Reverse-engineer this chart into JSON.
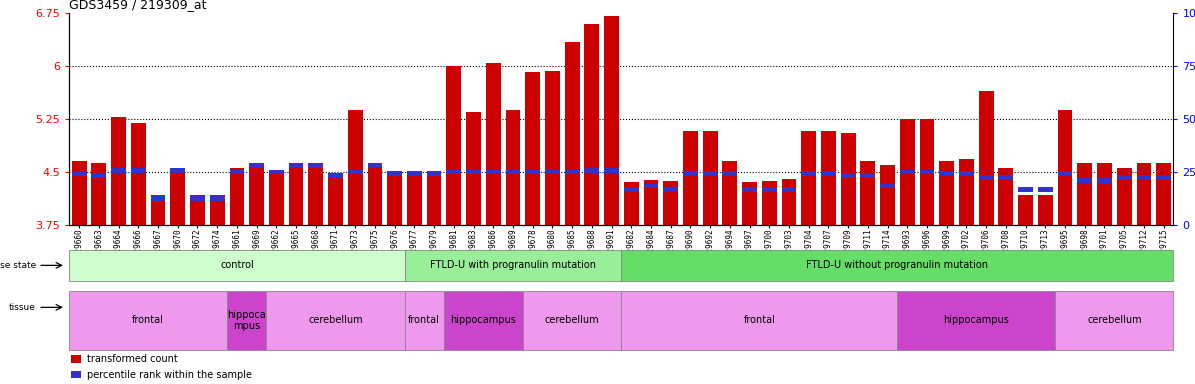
{
  "title": "GDS3459 / 219309_at",
  "ylim_left": [
    3.75,
    6.75
  ],
  "ylim_right": [
    0,
    100
  ],
  "yticks_left": [
    3.75,
    4.5,
    5.25,
    6.0,
    6.75
  ],
  "yticks_right": [
    0,
    25,
    50,
    75,
    100
  ],
  "ytick_labels_left": [
    "3.75",
    "4.5",
    "5.25",
    "6",
    "6.75"
  ],
  "ytick_labels_right": [
    "0",
    "25",
    "50",
    "75",
    "100%"
  ],
  "hlines": [
    4.5,
    5.25,
    6.0
  ],
  "bar_color": "#cc0000",
  "blue_color": "#3333cc",
  "samples": [
    "GSM329660",
    "GSM329663",
    "GSM329664",
    "GSM329666",
    "GSM329667",
    "GSM329670",
    "GSM329672",
    "GSM329674",
    "GSM329661",
    "GSM329669",
    "GSM329662",
    "GSM329665",
    "GSM329668",
    "GSM329671",
    "GSM329673",
    "GSM329675",
    "GSM329676",
    "GSM329677",
    "GSM329679",
    "GSM329681",
    "GSM329683",
    "GSM329686",
    "GSM329689",
    "GSM329678",
    "GSM329680",
    "GSM329685",
    "GSM329688",
    "GSM329691",
    "GSM329682",
    "GSM329684",
    "GSM329687",
    "GSM329690",
    "GSM329692",
    "GSM329694",
    "GSM329697",
    "GSM329700",
    "GSM329703",
    "GSM329704",
    "GSM329707",
    "GSM329709",
    "GSM329711",
    "GSM329714",
    "GSM329693",
    "GSM329696",
    "GSM329699",
    "GSM329702",
    "GSM329706",
    "GSM329708",
    "GSM329710",
    "GSM329713",
    "GSM329695",
    "GSM329698",
    "GSM329701",
    "GSM329705",
    "GSM329712",
    "GSM329715"
  ],
  "bar_heights": [
    4.65,
    4.62,
    5.28,
    5.19,
    4.17,
    4.54,
    4.17,
    4.17,
    4.55,
    4.63,
    4.51,
    4.63,
    4.63,
    4.45,
    5.38,
    4.63,
    4.51,
    4.51,
    4.51,
    6.0,
    5.35,
    6.05,
    5.38,
    5.92,
    5.93,
    6.35,
    6.6,
    6.72,
    4.35,
    4.38,
    4.37,
    5.08,
    5.08,
    4.65,
    4.35,
    4.37,
    4.4,
    5.08,
    5.08,
    5.05,
    4.65,
    4.6,
    5.25,
    5.25,
    4.65,
    4.68,
    5.65,
    4.55,
    4.17,
    4.17,
    5.38,
    4.62,
    4.62,
    4.55,
    4.62,
    4.62
  ],
  "blue_positions": [
    4.47,
    4.45,
    4.52,
    4.52,
    4.12,
    4.52,
    4.12,
    4.12,
    4.5,
    4.6,
    4.5,
    4.58,
    4.58,
    4.45,
    4.5,
    4.6,
    4.48,
    4.48,
    4.48,
    4.5,
    4.5,
    4.5,
    4.5,
    4.5,
    4.5,
    4.5,
    4.52,
    4.52,
    4.25,
    4.3,
    4.25,
    4.48,
    4.48,
    4.48,
    4.25,
    4.25,
    4.25,
    4.48,
    4.48,
    4.45,
    4.45,
    4.3,
    4.5,
    4.5,
    4.48,
    4.48,
    4.42,
    4.42,
    4.25,
    4.25,
    4.48,
    4.38,
    4.38,
    4.42,
    4.42,
    4.42
  ],
  "disease_state_groups": [
    {
      "label": "control",
      "start": 0,
      "end": 17,
      "color": "#ccffcc"
    },
    {
      "label": "FTLD-U with progranulin mutation",
      "start": 17,
      "end": 28,
      "color": "#99ee99"
    },
    {
      "label": "FTLD-U without progranulin mutation",
      "start": 28,
      "end": 56,
      "color": "#66dd66"
    }
  ],
  "tissue_groups": [
    {
      "label": "frontal",
      "start": 0,
      "end": 8,
      "color": "#ee99ee"
    },
    {
      "label": "hippoca\nmpus",
      "start": 8,
      "end": 10,
      "color": "#cc44cc"
    },
    {
      "label": "cerebellum",
      "start": 10,
      "end": 17,
      "color": "#ee99ee"
    },
    {
      "label": "frontal",
      "start": 17,
      "end": 19,
      "color": "#ee99ee"
    },
    {
      "label": "hippocampus",
      "start": 19,
      "end": 23,
      "color": "#cc44cc"
    },
    {
      "label": "cerebellum",
      "start": 23,
      "end": 28,
      "color": "#ee99ee"
    },
    {
      "label": "frontal",
      "start": 28,
      "end": 42,
      "color": "#ee99ee"
    },
    {
      "label": "hippocampus",
      "start": 42,
      "end": 50,
      "color": "#cc44cc"
    },
    {
      "label": "cerebellum",
      "start": 50,
      "end": 56,
      "color": "#ee99ee"
    }
  ],
  "legend_items": [
    {
      "label": "transformed count",
      "color": "#cc0000"
    },
    {
      "label": "percentile rank within the sample",
      "color": "#3333cc"
    }
  ],
  "chart_bg": "#ffffff",
  "label_row_bg": "#e8e8e8"
}
